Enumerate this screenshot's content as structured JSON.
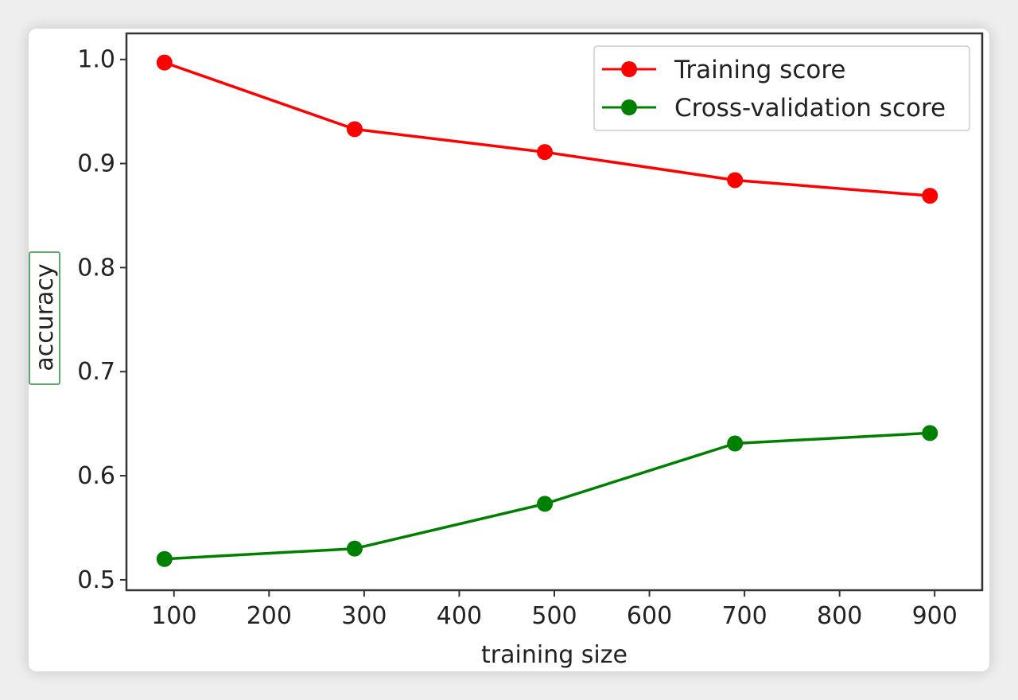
{
  "chart_data": {
    "type": "line",
    "title": "",
    "xlabel": "training size",
    "ylabel": "accuracy",
    "xlim": [
      50,
      950
    ],
    "ylim": [
      0.49,
      1.025
    ],
    "xticks": [
      100,
      200,
      300,
      400,
      500,
      600,
      700,
      800,
      900
    ],
    "xtick_labels": [
      "100",
      "200",
      "300",
      "400",
      "500",
      "600",
      "700",
      "800",
      "900"
    ],
    "yticks": [
      0.5,
      0.6,
      0.7,
      0.8,
      0.9,
      1.0
    ],
    "ytick_labels": [
      "0.5",
      "0.6",
      "0.7",
      "0.8",
      "0.9",
      "1.0"
    ],
    "grid": false,
    "legend_position": "top-right",
    "x": [
      90,
      290,
      490,
      690,
      895
    ],
    "series": [
      {
        "name": "Training score",
        "color": "#ff0000",
        "marker": "circle",
        "values": [
          0.997,
          0.933,
          0.911,
          0.884,
          0.869
        ]
      },
      {
        "name": "Cross-validation score",
        "color": "#008000",
        "marker": "circle",
        "values": [
          0.52,
          0.53,
          0.573,
          0.631,
          0.641
        ]
      }
    ]
  }
}
